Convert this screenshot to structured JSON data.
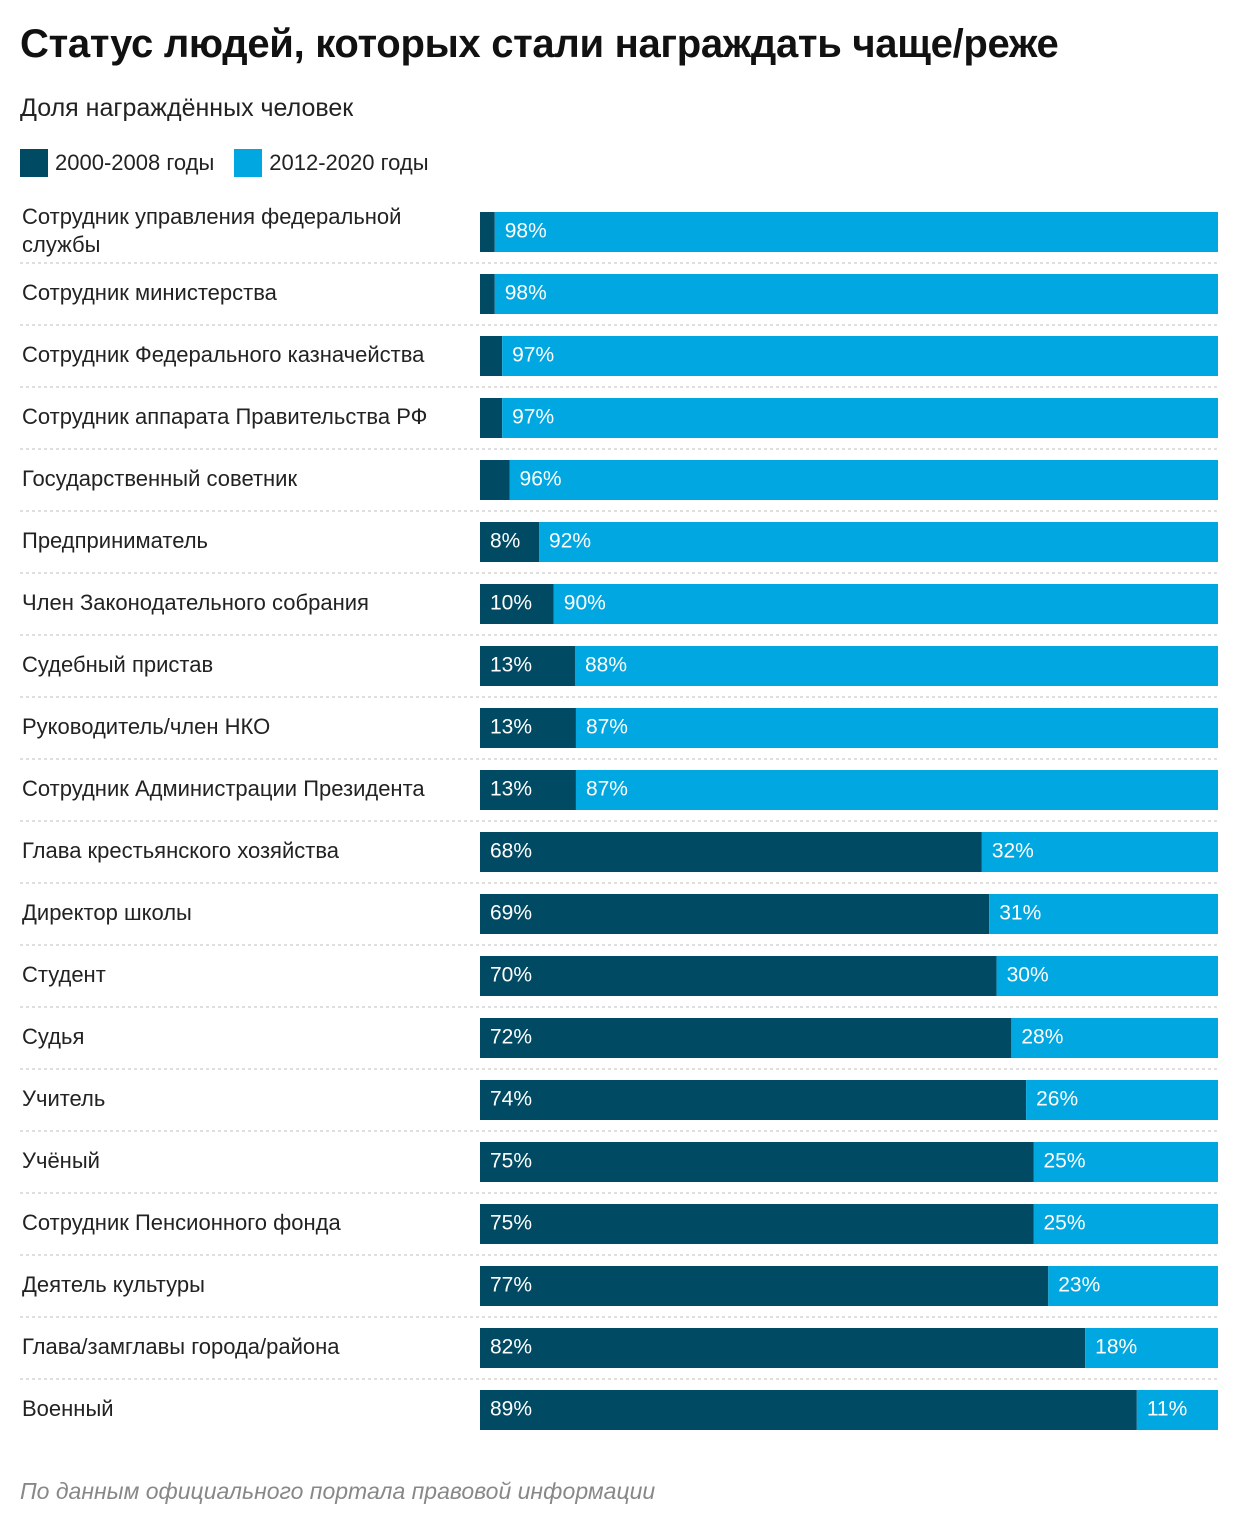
{
  "title": "Статус людей, которых стали награждать чаще/реже",
  "subtitle": "Доля награждённых человек",
  "legend": {
    "items": [
      {
        "label": "2000-2008 годы",
        "color": "#004a63"
      },
      {
        "label": "2012-2020 годы",
        "color": "#00a7e1"
      }
    ]
  },
  "source": "По данным официального портала правовой информации",
  "chart_data": {
    "type": "bar",
    "orientation": "horizontal",
    "stacked": "100%",
    "categories": [
      [
        "Сотрудник управления федеральной",
        "службы"
      ],
      [
        "Сотрудник министерства"
      ],
      [
        "Сотрудник Федерального казначейства"
      ],
      [
        "Сотрудник аппарата Правительства РФ"
      ],
      [
        "Государственный советник"
      ],
      [
        "Предприниматель"
      ],
      [
        "Член Законодательного собрания"
      ],
      [
        "Судебный пристав"
      ],
      [
        "Руководитель/член НКО"
      ],
      [
        "Сотрудник Администрации Президента"
      ],
      [
        "Глава крестьянского хозяйства"
      ],
      [
        "Директор школы"
      ],
      [
        "Студент"
      ],
      [
        "Судья"
      ],
      [
        "Учитель"
      ],
      [
        "Учёный"
      ],
      [
        "Сотрудник Пенсионного фонда"
      ],
      [
        "Деятель культуры"
      ],
      [
        "Глава/замглавы города/района"
      ],
      [
        "Военный"
      ]
    ],
    "series": [
      {
        "name": "2000-2008 годы",
        "color": "#004a63",
        "values": [
          2,
          2,
          3,
          3,
          4,
          8,
          10,
          13,
          13,
          13,
          68,
          69,
          70,
          72,
          74,
          75,
          75,
          77,
          82,
          89
        ],
        "labels": [
          "",
          "",
          "",
          "",
          "",
          "8%",
          "10%",
          "13%",
          "13%",
          "13%",
          "68%",
          "69%",
          "70%",
          "72%",
          "74%",
          "75%",
          "75%",
          "77%",
          "82%",
          "89%"
        ]
      },
      {
        "name": "2012-2020 годы",
        "color": "#00a7e1",
        "values": [
          98,
          98,
          97,
          97,
          96,
          92,
          90,
          88,
          87,
          87,
          32,
          31,
          30,
          28,
          26,
          25,
          25,
          23,
          18,
          11
        ],
        "labels": [
          "98%",
          "98%",
          "97%",
          "97%",
          "96%",
          "92%",
          "90%",
          "88%",
          "87%",
          "87%",
          "32%",
          "31%",
          "30%",
          "28%",
          "26%",
          "25%",
          "25%",
          "23%",
          "18%",
          "11%"
        ]
      }
    ],
    "xlim": [
      0,
      100
    ],
    "grid": false,
    "legend_position": "top-left"
  }
}
